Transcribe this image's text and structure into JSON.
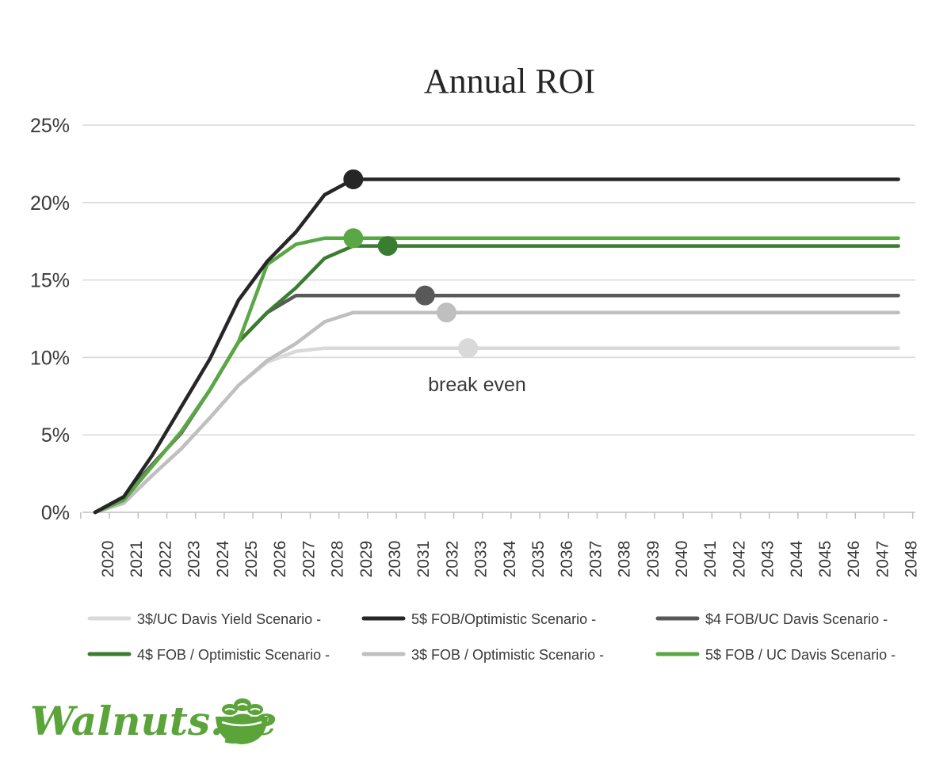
{
  "chart_data": {
    "type": "line",
    "title": "Annual ROI",
    "xlabel": "",
    "ylabel": "",
    "ylim": [
      0,
      25
    ],
    "yticks": [
      "0%",
      "5%",
      "10%",
      "15%",
      "20%",
      "25%"
    ],
    "categories": [
      "2020",
      "2021",
      "2022",
      "2023",
      "2024",
      "2025",
      "2026",
      "2027",
      "2028",
      "2029",
      "2030",
      "2031",
      "2032",
      "2033",
      "2034",
      "2035",
      "2036",
      "2037",
      "2038",
      "2039",
      "2040",
      "2041",
      "2042",
      "2043",
      "2044",
      "2045",
      "2046",
      "2047",
      "2048"
    ],
    "grid": true,
    "legend_position": "bottom",
    "series": [
      {
        "name": "3$/UC Davis Yield Scenario -",
        "color": "#d9d9d9",
        "values": [
          0,
          0.6,
          2.4,
          4.1,
          6.1,
          8.2,
          9.7,
          10.4,
          10.6,
          10.6,
          10.6,
          10.6,
          10.6,
          10.6,
          10.6,
          10.6,
          10.6,
          10.6,
          10.6,
          10.6,
          10.6,
          10.6,
          10.6,
          10.6,
          10.6,
          10.6,
          10.6,
          10.6,
          10.6
        ],
        "marker_index": 13
      },
      {
        "name": "3$ FOB / Optimistic Scenario -",
        "color": "#bfbfbf",
        "values": [
          0,
          0.6,
          2.4,
          4.1,
          6.1,
          8.2,
          9.8,
          10.9,
          12.3,
          12.9,
          12.9,
          12.9,
          12.9,
          12.9,
          12.9,
          12.9,
          12.9,
          12.9,
          12.9,
          12.9,
          12.9,
          12.9,
          12.9,
          12.9,
          12.9,
          12.9,
          12.9,
          12.9,
          12.9
        ],
        "marker_index": 12.25
      },
      {
        "name": "$4 FOB/UC Davis Scenario -",
        "color": "#595959",
        "values": [
          0,
          1.0,
          3.1,
          5.1,
          7.9,
          11.0,
          12.9,
          14.0,
          14.0,
          14.0,
          14.0,
          14.0,
          14.0,
          14.0,
          14.0,
          14.0,
          14.0,
          14.0,
          14.0,
          14.0,
          14.0,
          14.0,
          14.0,
          14.0,
          14.0,
          14.0,
          14.0,
          14.0,
          14.0
        ],
        "marker_index": 11.5
      },
      {
        "name": "4$ FOB / Optimistic Scenario -",
        "color": "#3a7d31",
        "values": [
          0,
          0.8,
          3.0,
          5.2,
          7.9,
          11.0,
          12.9,
          14.5,
          16.4,
          17.2,
          17.2,
          17.2,
          17.2,
          17.2,
          17.2,
          17.2,
          17.2,
          17.2,
          17.2,
          17.2,
          17.2,
          17.2,
          17.2,
          17.2,
          17.2,
          17.2,
          17.2,
          17.2,
          17.2
        ],
        "marker_index": 10.2
      },
      {
        "name": "5$ FOB / UC Davis Scenario -",
        "color": "#5aa845",
        "values": [
          0,
          0.8,
          3.0,
          5.2,
          7.9,
          11.0,
          16.0,
          17.3,
          17.7,
          17.7,
          17.7,
          17.7,
          17.7,
          17.7,
          17.7,
          17.7,
          17.7,
          17.7,
          17.7,
          17.7,
          17.7,
          17.7,
          17.7,
          17.7,
          17.7,
          17.7,
          17.7,
          17.7,
          17.7
        ],
        "marker_index": 9
      },
      {
        "name": "5$ FOB/Optimistic Scenario -",
        "color": "#262626",
        "values": [
          0,
          1.0,
          3.7,
          6.8,
          9.9,
          13.7,
          16.2,
          18.1,
          20.5,
          21.5,
          21.5,
          21.5,
          21.5,
          21.5,
          21.5,
          21.5,
          21.5,
          21.5,
          21.5,
          21.5,
          21.5,
          21.5,
          21.5,
          21.5,
          21.5,
          21.5,
          21.5,
          21.5,
          21.5
        ],
        "marker_index": 9
      }
    ],
    "annotations": [
      {
        "text": "break even"
      }
    ]
  },
  "legend_order": [
    0,
    3,
    5,
    1,
    2,
    4
  ],
  "brand": {
    "text": "Walnuts.ge",
    "color": "#5aa43a"
  }
}
